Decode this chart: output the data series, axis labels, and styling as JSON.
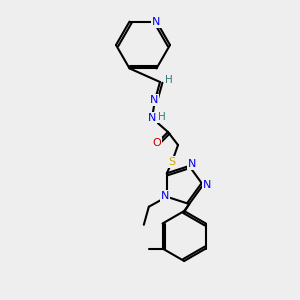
{
  "bg_color": "#eeeeee",
  "atom_colors": {
    "C": "#000000",
    "N": "#0000ee",
    "O": "#cc0000",
    "S": "#ccaa00",
    "H": "#337777"
  },
  "bond_color": "#000000",
  "figsize": [
    3.0,
    3.0
  ],
  "dpi": 100
}
